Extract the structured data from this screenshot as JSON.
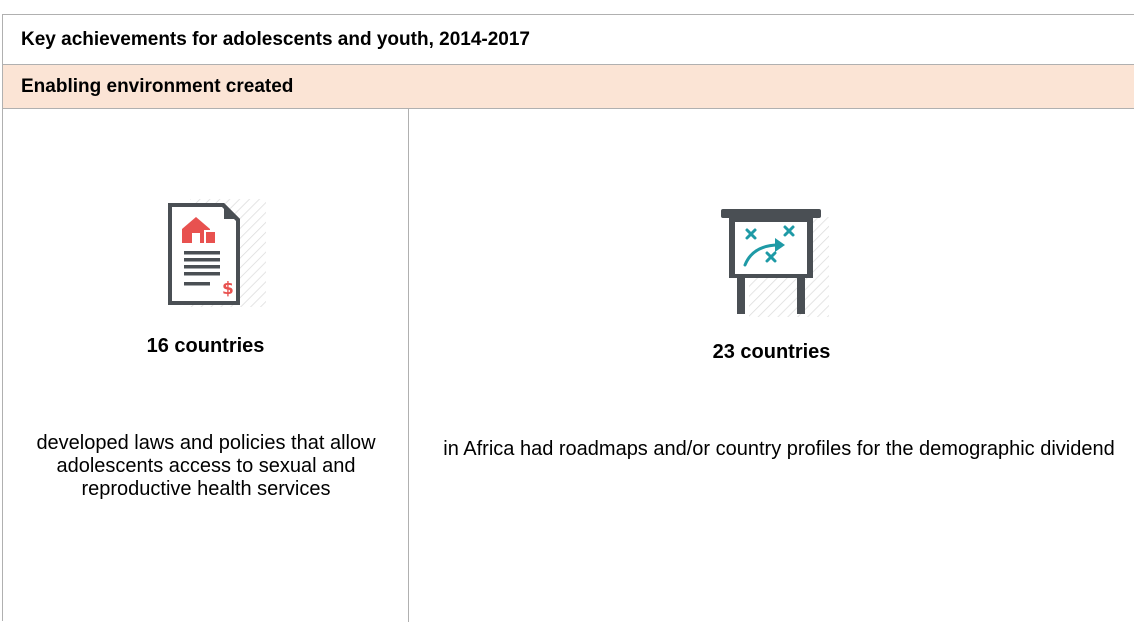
{
  "header": {
    "title": "Key achievements for adolescents and youth, 2014-2017"
  },
  "section": {
    "title": "Enabling environment created"
  },
  "achievements": [
    {
      "icon": "policy-document-icon",
      "stat": "16 countries",
      "description": "developed laws and policies that allow adolescents access to sexual and reproductive health services"
    },
    {
      "icon": "strategy-board-icon",
      "stat": "23 countries",
      "description": "in Africa had roadmaps and/or country profiles for the demographic dividend"
    }
  ],
  "colors": {
    "section_background": "#fbe4d5",
    "icon_dark": "#4a4f54",
    "icon_red": "#e8514f",
    "icon_teal": "#1e9aa6",
    "border": "#b0b0b0"
  }
}
